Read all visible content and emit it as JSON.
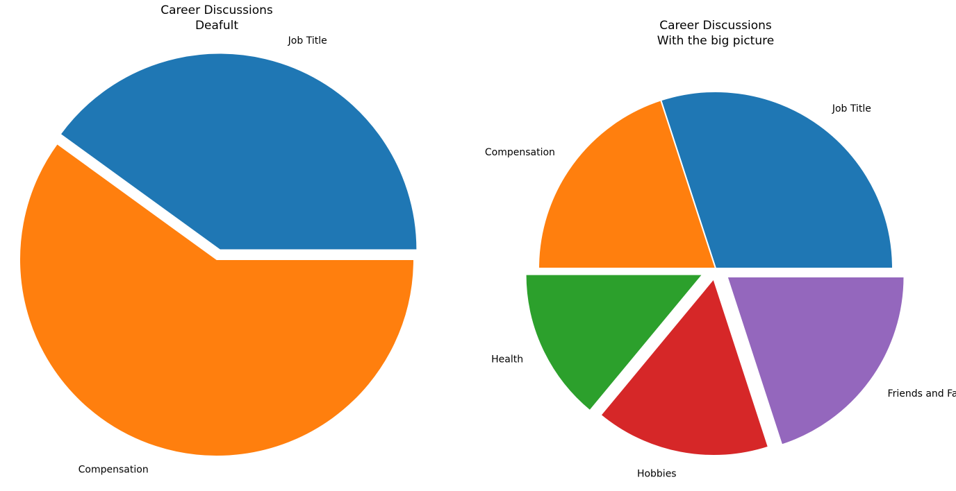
{
  "chart_data": [
    {
      "type": "pie",
      "title": "Career Discussions\nDeafult",
      "labels": [
        "Job Title",
        "Compensation"
      ],
      "values": [
        40,
        60
      ],
      "colors": [
        "#1f77b4",
        "#ff7f0e"
      ],
      "explode": [
        0.05,
        0.0
      ],
      "startangle": 0
    },
    {
      "type": "pie",
      "title": "Career Discussions\nWith the big picture",
      "labels": [
        "Job Title",
        "Compensation",
        "Health",
        "Hobbies",
        "Friends and Family"
      ],
      "values": [
        30,
        20,
        14,
        16,
        20
      ],
      "colors": [
        "#1f77b4",
        "#ff7f0e",
        "#2ca02c",
        "#d62728",
        "#9467bd"
      ],
      "explode": [
        0.0,
        0.0,
        0.08,
        0.06,
        0.08
      ],
      "startangle": 0
    }
  ]
}
